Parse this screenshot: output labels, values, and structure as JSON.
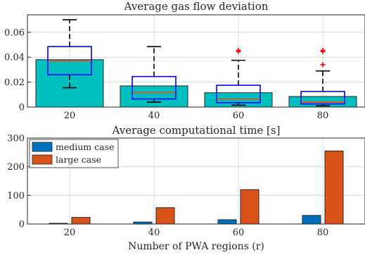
{
  "chart_data": [
    {
      "type": "bar",
      "title": "Average gas flow deviation",
      "categories": [
        "20",
        "40",
        "60",
        "80"
      ],
      "values": [
        0.038,
        0.017,
        0.0115,
        0.0085
      ],
      "ylim": [
        0,
        0.074
      ],
      "yticks": [
        0,
        0.02,
        0.04,
        0.06
      ],
      "ytick_labels": [
        "0",
        "0.02",
        "0.04",
        "0.06"
      ],
      "grid": true,
      "bar_color": "#00bfbf",
      "boxplot": {
        "color": "#0000ff",
        "median_color": "#ff4500",
        "outlier_color": "#ff0000",
        "boxes": [
          {
            "whisker_low": 0.0155,
            "q1": 0.026,
            "median": 0.037,
            "q3": 0.0485,
            "whisker_high": 0.07,
            "outliers": []
          },
          {
            "whisker_low": 0.004,
            "q1": 0.0065,
            "median": 0.0115,
            "q3": 0.0245,
            "whisker_high": 0.0485,
            "outliers": []
          },
          {
            "whisker_low": 0.0015,
            "q1": 0.0035,
            "median": 0.0065,
            "q3": 0.0175,
            "whisker_high": 0.0375,
            "outliers": [
              0.0445,
              0.0455
            ]
          },
          {
            "whisker_low": 0.001,
            "q1": 0.0025,
            "median": 0.004,
            "q3": 0.0125,
            "whisker_high": 0.029,
            "outliers": [
              0.034,
              0.0445,
              0.0455
            ]
          }
        ]
      }
    },
    {
      "type": "bar",
      "title": "Average computational time [s]",
      "categories": [
        "20",
        "40",
        "60",
        "80"
      ],
      "xlabel": "Number of PWA regions (r)",
      "ylim": [
        0,
        300
      ],
      "yticks": [
        0,
        100,
        200,
        300
      ],
      "ytick_labels": [
        "0",
        "100",
        "200",
        "300"
      ],
      "grid": true,
      "legend_placement": "top-left",
      "series": [
        {
          "name": "medium case",
          "color": "#0072bd",
          "values": [
            2.5,
            7,
            15,
            30
          ]
        },
        {
          "name": "large case",
          "color": "#d95319",
          "values": [
            23,
            57,
            120,
            255
          ]
        }
      ]
    }
  ]
}
